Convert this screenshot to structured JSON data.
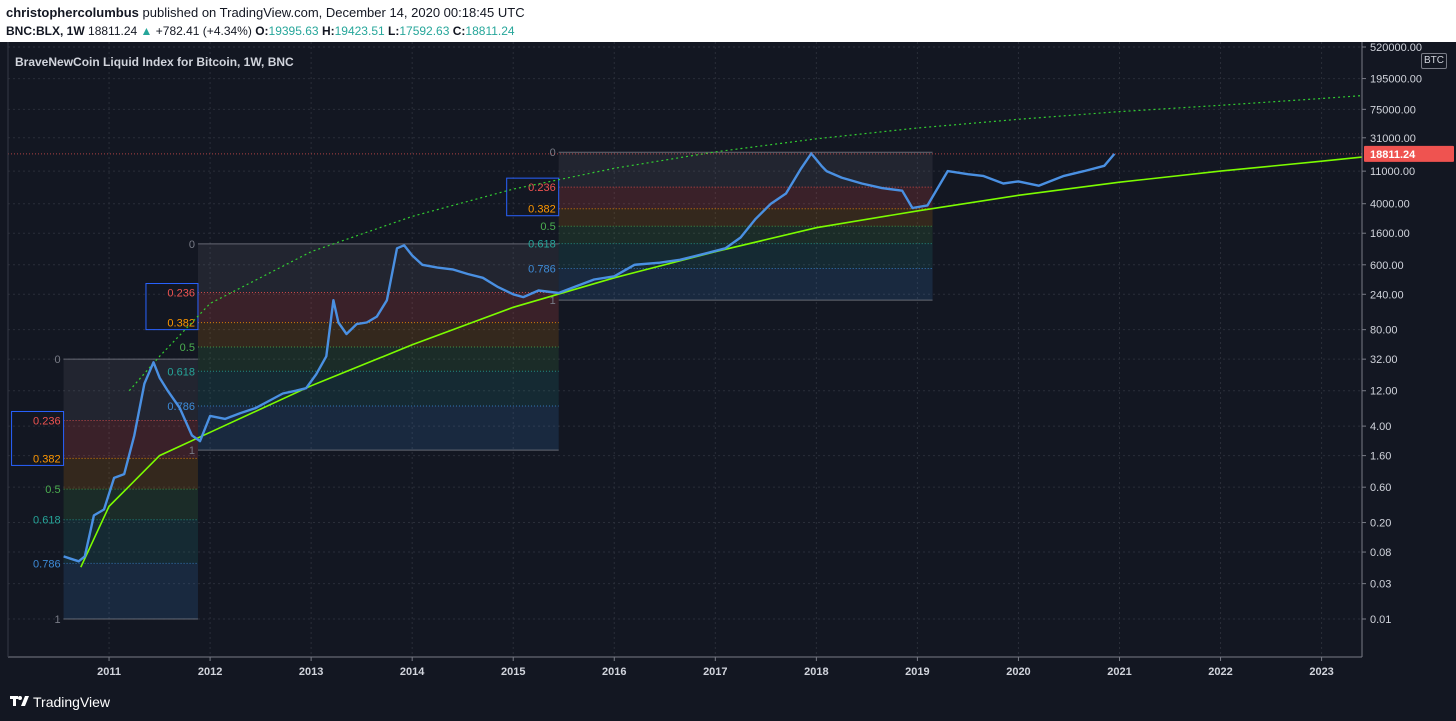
{
  "header": {
    "author": "christophercolumbus",
    "published": "published on TradingView.com, December 14, 2020 00:18:45 UTC"
  },
  "quote": {
    "symbol": "BNC:BLX, 1W",
    "last": "18811.24",
    "change": "+782.41 (+4.34%)",
    "o_label": "O:",
    "o": "19395.63",
    "h_label": "H:",
    "h": "19423.51",
    "l_label": "L:",
    "l": "17592.63",
    "c_label": "C:",
    "c": "18811.24"
  },
  "chart": {
    "title": "BraveNewCoin Liquid Index for Bitcoin, 1W, BNC",
    "currency": "BTC",
    "price_label": "18811.24"
  },
  "footer": {
    "brand": "TradingView"
  },
  "colors": {
    "background": "#131722",
    "candles": "#4a90e2",
    "support": "#7cfc00",
    "resistance": "#32cd32",
    "price_tag": "#ef5350",
    "fib_0236": "#ef5350",
    "fib_0382": "#ff9800",
    "fib_05": "#4caf50",
    "fib_0618": "#26a69a",
    "fib_0786": "#3d8bd8"
  },
  "chart_data": {
    "type": "line",
    "yscale": "log",
    "ylim": [
      0.008,
      800000
    ],
    "x_ticks": [
      "2011",
      "2012",
      "2013",
      "2014",
      "2015",
      "2016",
      "2017",
      "2018",
      "2019",
      "2020",
      "2021",
      "2022",
      "2023"
    ],
    "y_ticks": [
      "520000.00",
      "195000.00",
      "75000.00",
      "31000.00",
      "11000.00",
      "4000.00",
      "1600.00",
      "600.00",
      "240.00",
      "80.00",
      "32.00",
      "12.00",
      "4.00",
      "1.60",
      "0.60",
      "0.20",
      "0.08",
      "0.03",
      "0.01"
    ],
    "series": [
      {
        "x": [
          2010.55,
          2010.62,
          2010.7,
          2010.76,
          2010.85,
          2010.95,
          2011.05,
          2011.15,
          2011.25,
          2011.35,
          2011.44,
          2011.5,
          2011.58,
          2011.7,
          2011.82,
          2011.9,
          2012.0,
          2012.15,
          2012.3,
          2012.45,
          2012.6,
          2012.72,
          2012.85,
          2012.95,
          2013.05,
          2013.15,
          2013.22,
          2013.27,
          2013.35,
          2013.45,
          2013.55,
          2013.65,
          2013.75,
          2013.85,
          2013.92,
          2014.0,
          2014.1,
          2014.25,
          2014.4,
          2014.55,
          2014.7,
          2014.85,
          2015.0,
          2015.1,
          2015.25,
          2015.45,
          2015.6,
          2015.8,
          2016.0,
          2016.2,
          2016.45,
          2016.65,
          2016.9,
          2017.1,
          2017.25,
          2017.4,
          2017.55,
          2017.7,
          2017.85,
          2017.95,
          2018.05,
          2018.1,
          2018.25,
          2018.45,
          2018.65,
          2018.85,
          2018.95,
          2019.1,
          2019.3,
          2019.5,
          2019.65,
          2019.85,
          2020.0,
          2020.2,
          2020.45,
          2020.65,
          2020.85,
          2020.95
        ],
        "values": [
          0.07,
          0.065,
          0.06,
          0.07,
          0.25,
          0.3,
          0.8,
          0.9,
          3,
          15,
          29,
          18,
          12,
          7,
          3,
          2.5,
          5.5,
          5,
          6,
          7,
          9,
          11,
          12,
          13,
          20,
          35,
          200,
          100,
          70,
          95,
          100,
          120,
          200,
          1000,
          1100,
          800,
          600,
          550,
          520,
          450,
          400,
          300,
          240,
          220,
          270,
          250,
          300,
          380,
          420,
          600,
          640,
          700,
          850,
          1000,
          1400,
          2500,
          4000,
          5500,
          12000,
          19000,
          13000,
          11000,
          9000,
          7500,
          6500,
          6000,
          3500,
          3800,
          11000,
          10000,
          9500,
          7500,
          8000,
          7000,
          9500,
          11000,
          13000,
          18811
        ]
      }
    ],
    "support_curve": [
      [
        2010.72,
        0.05
      ],
      [
        2011.0,
        0.33
      ],
      [
        2011.5,
        1.6
      ],
      [
        2012.0,
        3.3
      ],
      [
        2013.0,
        14
      ],
      [
        2014.0,
        50
      ],
      [
        2015.0,
        160
      ],
      [
        2016.0,
        400
      ],
      [
        2017.0,
        900
      ],
      [
        2018.0,
        1900
      ],
      [
        2019.0,
        3200
      ],
      [
        2020.0,
        5200
      ],
      [
        2021.0,
        7800
      ],
      [
        2022.0,
        11000
      ],
      [
        2023.0,
        15000
      ],
      [
        2023.4,
        17000
      ]
    ],
    "resistance_curve": [
      [
        2011.2,
        12
      ],
      [
        2011.5,
        35
      ],
      [
        2012.0,
        180
      ],
      [
        2013.0,
        900
      ],
      [
        2014.0,
        2700
      ],
      [
        2015.0,
        6300
      ],
      [
        2016.0,
        12000
      ],
      [
        2017.0,
        20000
      ],
      [
        2018.0,
        30000
      ],
      [
        2019.0,
        42000
      ],
      [
        2020.0,
        55000
      ],
      [
        2021.0,
        70000
      ],
      [
        2022.0,
        85000
      ],
      [
        2023.0,
        105000
      ],
      [
        2023.4,
        115000
      ]
    ],
    "fib_levels": [
      "0",
      "0.236",
      "0.382",
      "0.5",
      "0.618",
      "0.786",
      "1"
    ],
    "fib_retracements": [
      {
        "x0": 2010.55,
        "x1": 2011.88,
        "top": 32,
        "bottom": 0.01
      },
      {
        "x0": 2011.88,
        "x1": 2015.45,
        "top": 1150,
        "bottom": 1.9
      },
      {
        "x0": 2015.45,
        "x1": 2019.15,
        "top": 19800,
        "bottom": 200
      }
    ]
  }
}
